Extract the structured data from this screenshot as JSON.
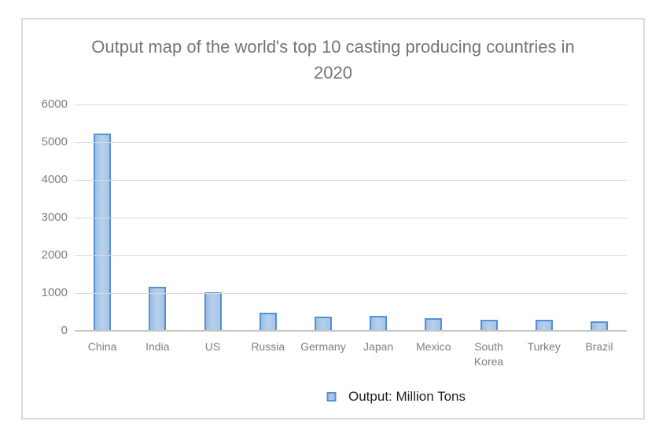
{
  "chart": {
    "title": "Output map of the world's top 10 casting producing countries in 2020",
    "legend": {
      "label": "Output: Million Tons"
    }
  },
  "chart_data": {
    "type": "bar",
    "title": "Output map of the world's top 10 casting producing countries in 2020",
    "categories": [
      "China",
      "India",
      "US",
      "Russia",
      "Germany",
      "Japan",
      "Mexico",
      "South Korea",
      "Turkey",
      "Brazil"
    ],
    "values": [
      5195,
      1130,
      980,
      430,
      340,
      350,
      290,
      260,
      240,
      210
    ],
    "series_name": "Output: Million Tons",
    "xlabel": "",
    "ylabel": "",
    "ylim": [
      0,
      6000
    ],
    "yticks": [
      0,
      1000,
      2000,
      3000,
      4000,
      5000,
      6000
    ],
    "grid": true,
    "legend_position": "bottom",
    "colors": {
      "bar_fill": "#acc9ea",
      "bar_border": "#5590d2",
      "gridline": "#d9d9d9",
      "axis_line": "#c3c3c3",
      "title_text": "#757575",
      "axis_text": "#7f7f7f",
      "legend_text": "#1f1f1f",
      "frame_border": "#dbdbdb"
    }
  }
}
